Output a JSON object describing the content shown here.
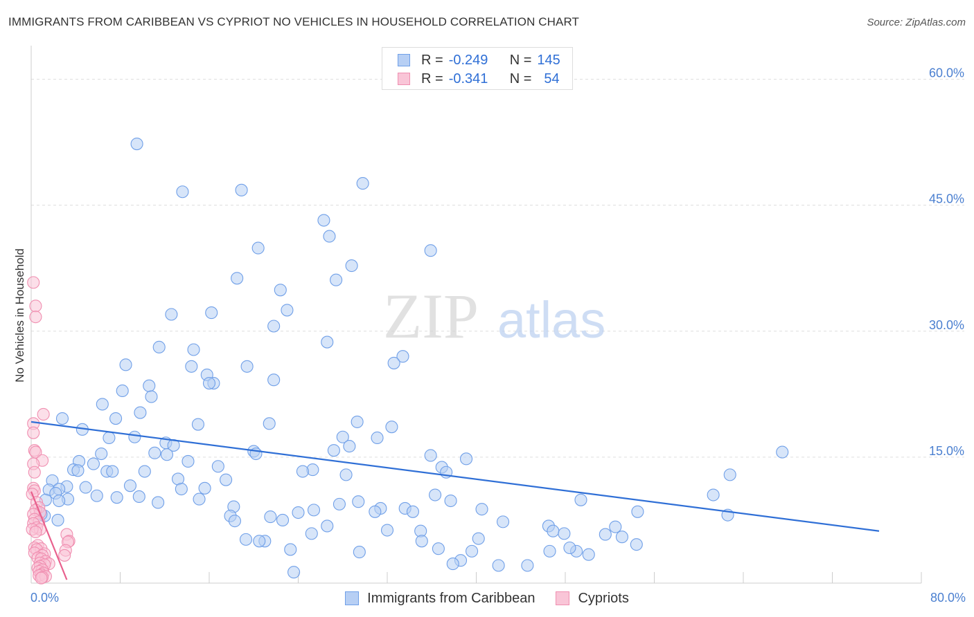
{
  "chart_data": {
    "type": "scatter",
    "title": "IMMIGRANTS FROM CARIBBEAN VS CYPRIOT NO VEHICLES IN HOUSEHOLD CORRELATION CHART",
    "source": "Source: ZipAtlas.com",
    "xlabel": "",
    "ylabel": "No Vehicles in Household",
    "xlim": [
      0,
      80
    ],
    "ylim": [
      0,
      64
    ],
    "x_tick_labels": [
      {
        "value": 0,
        "label": "0.0%"
      },
      {
        "value": 80,
        "label": "80.0%"
      }
    ],
    "y_tick_labels": [
      {
        "value": 15,
        "label": "15.0%"
      },
      {
        "value": 30,
        "label": "30.0%"
      },
      {
        "value": 45,
        "label": "45.0%"
      },
      {
        "value": 60,
        "label": "60.0%"
      }
    ],
    "watermark": {
      "zip": "ZIP",
      "atlas": "atlas"
    },
    "stats": [
      {
        "r_label": "R =",
        "r_value": "-0.249",
        "n_label": "N =",
        "n_value": "145"
      },
      {
        "r_label": "R =",
        "r_value": "-0.341",
        "n_label": "N =",
        "n_value": "54"
      }
    ],
    "series": [
      {
        "name": "Immigrants from Caribbean",
        "color": "#6f9fe8",
        "fill": "#b7cff4",
        "line_color": "#2f6fd6",
        "trend": {
          "x0": 0,
          "y0": 19.2,
          "x1": 76.2,
          "y1": 6.2
        },
        "points": [
          [
            9.5,
            52.3
          ],
          [
            13.6,
            46.6
          ],
          [
            18.9,
            46.8
          ],
          [
            29.8,
            47.6
          ],
          [
            26.3,
            43.2
          ],
          [
            26.8,
            41.3
          ],
          [
            20.4,
            39.9
          ],
          [
            28.8,
            37.8
          ],
          [
            27.4,
            36.1
          ],
          [
            18.5,
            36.3
          ],
          [
            22.4,
            34.9
          ],
          [
            35.9,
            39.6
          ],
          [
            23.0,
            32.5
          ],
          [
            16.2,
            32.2
          ],
          [
            12.6,
            32.0
          ],
          [
            21.8,
            30.6
          ],
          [
            26.6,
            28.7
          ],
          [
            33.4,
            27.0
          ],
          [
            11.5,
            28.1
          ],
          [
            14.6,
            27.8
          ],
          [
            8.5,
            26.0
          ],
          [
            14.4,
            25.8
          ],
          [
            19.4,
            25.8
          ],
          [
            32.6,
            26.2
          ],
          [
            15.8,
            24.8
          ],
          [
            16.4,
            23.8
          ],
          [
            16.0,
            23.8
          ],
          [
            21.8,
            24.2
          ],
          [
            10.6,
            23.5
          ],
          [
            8.2,
            22.9
          ],
          [
            10.8,
            22.2
          ],
          [
            6.4,
            21.3
          ],
          [
            9.8,
            20.3
          ],
          [
            7.6,
            19.6
          ],
          [
            2.8,
            19.6
          ],
          [
            29.3,
            19.2
          ],
          [
            21.4,
            19.0
          ],
          [
            15.0,
            18.9
          ],
          [
            32.4,
            18.6
          ],
          [
            4.6,
            18.3
          ],
          [
            9.3,
            17.4
          ],
          [
            7.0,
            17.3
          ],
          [
            28.0,
            17.4
          ],
          [
            31.1,
            17.3
          ],
          [
            12.1,
            16.7
          ],
          [
            12.8,
            16.4
          ],
          [
            28.6,
            16.3
          ],
          [
            27.2,
            15.8
          ],
          [
            6.3,
            15.4
          ],
          [
            11.1,
            15.5
          ],
          [
            12.2,
            15.3
          ],
          [
            20.0,
            15.7
          ],
          [
            20.2,
            15.4
          ],
          [
            35.9,
            15.2
          ],
          [
            39.1,
            14.8
          ],
          [
            14.1,
            14.5
          ],
          [
            4.3,
            14.5
          ],
          [
            5.6,
            14.2
          ],
          [
            16.8,
            13.9
          ],
          [
            36.9,
            13.8
          ],
          [
            25.3,
            13.5
          ],
          [
            24.4,
            13.3
          ],
          [
            3.8,
            13.5
          ],
          [
            4.2,
            13.4
          ],
          [
            6.8,
            13.3
          ],
          [
            7.3,
            13.3
          ],
          [
            10.2,
            13.3
          ],
          [
            37.3,
            13.2
          ],
          [
            67.5,
            15.6
          ],
          [
            62.8,
            12.9
          ],
          [
            28.3,
            12.9
          ],
          [
            1.9,
            12.2
          ],
          [
            13.2,
            12.4
          ],
          [
            17.5,
            12.3
          ],
          [
            3.2,
            11.5
          ],
          [
            8.9,
            11.6
          ],
          [
            4.9,
            11.4
          ],
          [
            1.6,
            11.1
          ],
          [
            2.5,
            11.2
          ],
          [
            13.5,
            11.2
          ],
          [
            15.6,
            11.3
          ],
          [
            2.2,
            10.7
          ],
          [
            5.9,
            10.4
          ],
          [
            9.7,
            10.3
          ],
          [
            7.7,
            10.2
          ],
          [
            15.1,
            10.0
          ],
          [
            3.3,
            10.0
          ],
          [
            1.3,
            9.9
          ],
          [
            2.5,
            9.8
          ],
          [
            11.4,
            9.6
          ],
          [
            36.3,
            10.5
          ],
          [
            37.7,
            9.8
          ],
          [
            49.4,
            9.9
          ],
          [
            61.3,
            10.5
          ],
          [
            29.4,
            9.7
          ],
          [
            27.7,
            9.4
          ],
          [
            18.2,
            9.1
          ],
          [
            31.4,
            8.9
          ],
          [
            30.9,
            8.5
          ],
          [
            33.6,
            8.9
          ],
          [
            34.3,
            8.5
          ],
          [
            25.4,
            8.7
          ],
          [
            24.0,
            8.4
          ],
          [
            40.5,
            8.8
          ],
          [
            54.5,
            8.5
          ],
          [
            62.6,
            8.1
          ],
          [
            1.2,
            8.0
          ],
          [
            17.9,
            8.0
          ],
          [
            21.5,
            7.9
          ],
          [
            22.6,
            7.5
          ],
          [
            18.3,
            7.4
          ],
          [
            42.4,
            7.3
          ],
          [
            26.6,
            6.8
          ],
          [
            46.5,
            6.8
          ],
          [
            52.5,
            6.7
          ],
          [
            2.4,
            7.5
          ],
          [
            0.9,
            8.2
          ],
          [
            32.0,
            6.3
          ],
          [
            35.0,
            6.2
          ],
          [
            46.9,
            6.2
          ],
          [
            47.9,
            5.9
          ],
          [
            25.2,
            5.9
          ],
          [
            51.6,
            5.8
          ],
          [
            53.1,
            5.5
          ],
          [
            19.3,
            5.2
          ],
          [
            21.0,
            5.0
          ],
          [
            35.1,
            5.0
          ],
          [
            40.2,
            5.3
          ],
          [
            54.4,
            4.6
          ],
          [
            20.5,
            5.0
          ],
          [
            23.3,
            4.0
          ],
          [
            29.5,
            3.7
          ],
          [
            36.6,
            4.1
          ],
          [
            39.6,
            3.8
          ],
          [
            46.6,
            3.8
          ],
          [
            49.0,
            3.8
          ],
          [
            48.4,
            4.2
          ],
          [
            50.1,
            3.4
          ],
          [
            38.6,
            2.7
          ],
          [
            37.9,
            2.3
          ],
          [
            42.0,
            2.1
          ],
          [
            44.6,
            2.1
          ],
          [
            23.6,
            1.3
          ]
        ]
      },
      {
        "name": "Cypriots",
        "color": "#f08eb0",
        "fill": "#f9c5d7",
        "line_color": "#e8608d",
        "trend": {
          "x0": 0,
          "y0": 10.9,
          "x1": 3.2,
          "y1": 0.4
        },
        "points": [
          [
            0.2,
            35.8
          ],
          [
            0.4,
            33.0
          ],
          [
            0.4,
            31.7
          ],
          [
            1.1,
            20.1
          ],
          [
            0.2,
            19.0
          ],
          [
            0.2,
            17.9
          ],
          [
            0.3,
            15.8
          ],
          [
            0.4,
            15.6
          ],
          [
            1.0,
            14.6
          ],
          [
            0.2,
            14.2
          ],
          [
            0.3,
            13.2
          ],
          [
            0.2,
            11.3
          ],
          [
            0.3,
            11.0
          ],
          [
            0.1,
            10.6
          ],
          [
            0.5,
            9.6
          ],
          [
            0.7,
            9.0
          ],
          [
            0.4,
            8.7
          ],
          [
            0.8,
            8.4
          ],
          [
            0.2,
            8.2
          ],
          [
            0.3,
            7.6
          ],
          [
            0.7,
            7.3
          ],
          [
            0.2,
            7.1
          ],
          [
            0.5,
            6.6
          ],
          [
            0.8,
            6.4
          ],
          [
            0.1,
            6.4
          ],
          [
            0.4,
            6.1
          ],
          [
            3.2,
            5.8
          ],
          [
            3.4,
            5.0
          ],
          [
            3.3,
            4.9
          ],
          [
            0.6,
            4.5
          ],
          [
            0.3,
            4.2
          ],
          [
            0.9,
            4.1
          ],
          [
            0.5,
            4.0
          ],
          [
            3.1,
            3.9
          ],
          [
            0.3,
            3.6
          ],
          [
            1.2,
            3.5
          ],
          [
            1.0,
            3.3
          ],
          [
            3.0,
            3.3
          ],
          [
            0.6,
            3.0
          ],
          [
            0.9,
            2.9
          ],
          [
            1.3,
            2.6
          ],
          [
            0.8,
            2.4
          ],
          [
            1.6,
            2.3
          ],
          [
            1.2,
            2.2
          ],
          [
            0.8,
            2.0
          ],
          [
            0.6,
            1.8
          ],
          [
            1.0,
            1.6
          ],
          [
            0.7,
            1.4
          ],
          [
            1.1,
            1.2
          ],
          [
            0.9,
            1.0
          ],
          [
            0.7,
            0.9
          ],
          [
            1.3,
            0.8
          ],
          [
            1.0,
            0.7
          ],
          [
            0.9,
            0.6
          ]
        ]
      }
    ]
  }
}
